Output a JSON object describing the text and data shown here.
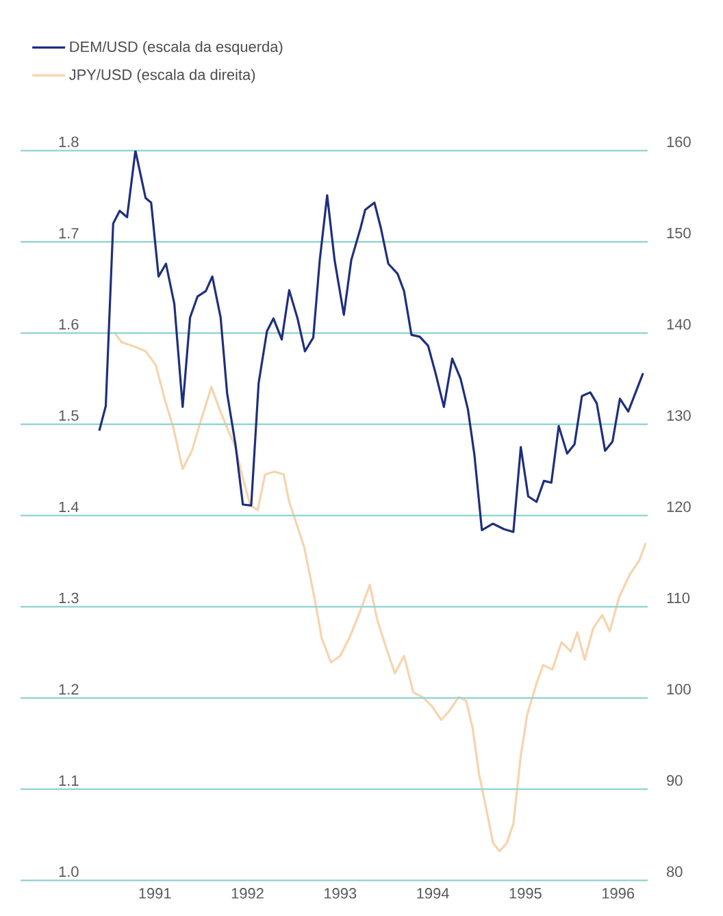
{
  "chart_data": {
    "type": "line",
    "grid": "y",
    "legend": "top left",
    "xlim": [
      1990.05,
      1996.82
    ],
    "xticks": [
      {
        "value": 1991.5,
        "label": "1991"
      },
      {
        "value": 1992.5,
        "label": "1992"
      },
      {
        "value": 1993.5,
        "label": "1993"
      },
      {
        "value": 1994.5,
        "label": "1994"
      },
      {
        "value": 1995.5,
        "label": "1995"
      },
      {
        "value": 1996.5,
        "label": "1996"
      }
    ],
    "ylim": [
      1.0,
      1.8
    ],
    "yticks": [
      {
        "value": 1.0,
        "label": "1.0"
      },
      1.1,
      1.2,
      1.3,
      1.4,
      1.5,
      1.6,
      1.7,
      1.8
    ],
    "y2lim": [
      80,
      160
    ],
    "y2ticks": [
      80,
      90,
      100,
      110,
      120,
      130,
      140,
      150,
      160
    ],
    "series": [
      {
        "name": "DEM/USD (escala da esquerda)",
        "color": "#1f2f7c",
        "x": [
          1990.9,
          1990.97,
          1991.05,
          1991.12,
          1991.2,
          1991.29,
          1991.4,
          1991.46,
          1991.54,
          1991.62,
          1991.71,
          1991.8,
          1991.88,
          1991.96,
          1992.05,
          1992.12,
          1992.21,
          1992.28,
          1992.37,
          1992.45,
          1992.54,
          1992.62,
          1992.71,
          1992.78,
          1992.87,
          1992.95,
          1993.04,
          1993.12,
          1993.21,
          1993.28,
          1993.36,
          1993.44,
          1993.54,
          1993.62,
          1993.72,
          1993.77,
          1993.87,
          1993.94,
          1994.02,
          1994.12,
          1994.19,
          1994.27,
          1994.36,
          1994.45,
          1994.53,
          1994.62,
          1994.71,
          1994.8,
          1994.88,
          1994.95,
          1995.03,
          1995.15,
          1995.27,
          1995.37,
          1995.45,
          1995.53,
          1995.62,
          1995.7,
          1995.78,
          1995.86,
          1995.95,
          1996.03,
          1996.11,
          1996.2,
          1996.27,
          1996.36,
          1996.44,
          1996.52,
          1996.61,
          1996.77
        ],
        "values": [
          1.493,
          1.52,
          1.72,
          1.734,
          1.727,
          1.8,
          1.748,
          1.743,
          1.662,
          1.676,
          1.632,
          1.519,
          1.617,
          1.64,
          1.646,
          1.662,
          1.617,
          1.534,
          1.478,
          1.412,
          1.411,
          1.545,
          1.602,
          1.616,
          1.593,
          1.647,
          1.616,
          1.58,
          1.595,
          1.68,
          1.751,
          1.68,
          1.62,
          1.68,
          1.715,
          1.735,
          1.743,
          1.715,
          1.676,
          1.665,
          1.646,
          1.598,
          1.596,
          1.586,
          1.556,
          1.519,
          1.572,
          1.55,
          1.516,
          1.466,
          1.384,
          1.391,
          1.385,
          1.382,
          1.475,
          1.421,
          1.415,
          1.438,
          1.436,
          1.498,
          1.468,
          1.478,
          1.531,
          1.535,
          1.523,
          1.471,
          1.481,
          1.528,
          1.514,
          1.556
        ]
      },
      {
        "name": "JPY/USD (escala da direita)",
        "color": "#f7d3ac",
        "axis": "y2",
        "x": [
          1991.06,
          1991.14,
          1991.26,
          1991.4,
          1991.51,
          1991.61,
          1991.7,
          1991.8,
          1991.9,
          1992.0,
          1992.11,
          1992.2,
          1992.28,
          1992.37,
          1992.44,
          1992.53,
          1992.61,
          1992.69,
          1992.79,
          1992.89,
          1992.95,
          1993.11,
          1993.23,
          1993.3,
          1993.4,
          1993.5,
          1993.6,
          1993.72,
          1993.82,
          1993.9,
          1993.99,
          1994.09,
          1994.19,
          1994.29,
          1994.39,
          1994.49,
          1994.59,
          1994.68,
          1994.78,
          1994.86,
          1994.93,
          1995.0,
          1995.08,
          1995.15,
          1995.22,
          1995.3,
          1995.37,
          1995.45,
          1995.52,
          1995.62,
          1995.69,
          1995.79,
          1995.89,
          1995.99,
          1996.06,
          1996.14,
          1996.23,
          1996.33,
          1996.41,
          1996.51,
          1996.63,
          1996.73,
          1996.8
        ],
        "values": [
          140.1,
          139.0,
          138.6,
          138.0,
          136.5,
          132.6,
          129.6,
          125.1,
          127.1,
          130.5,
          134.1,
          131.6,
          129.6,
          127.5,
          124.5,
          121.1,
          120.6,
          124.5,
          124.8,
          124.5,
          121.5,
          116.6,
          110.6,
          106.6,
          103.9,
          104.6,
          106.6,
          109.6,
          112.4,
          108.6,
          105.7,
          102.7,
          104.6,
          100.6,
          100.1,
          99.1,
          97.6,
          98.6,
          100.1,
          99.7,
          96.7,
          91.6,
          87.7,
          84.1,
          83.2,
          84.1,
          86.2,
          93.7,
          98.2,
          101.6,
          103.6,
          103.1,
          106.1,
          105.1,
          107.2,
          104.2,
          107.6,
          109.1,
          107.3,
          111.0,
          113.6,
          115.1,
          117.0
        ]
      }
    ]
  }
}
